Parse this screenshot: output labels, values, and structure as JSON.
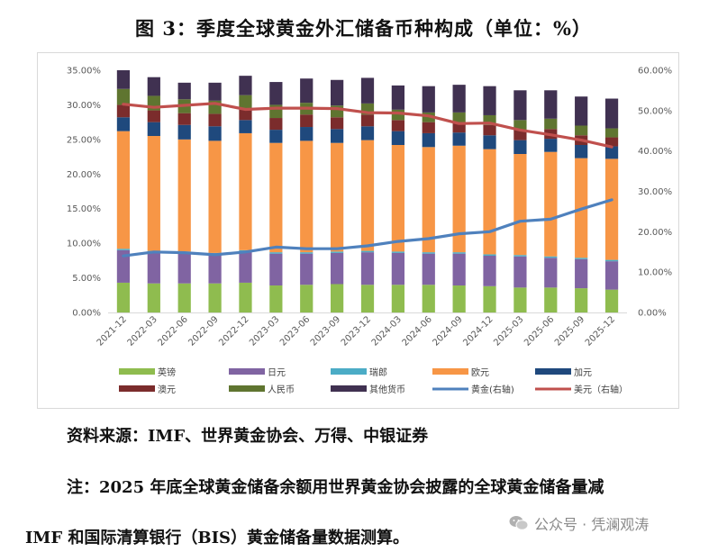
{
  "title": "图 3：季度全球黄金外汇储备币种构成（单位：%）",
  "source": "资料来源：IMF、世界黄金协会、万得、中银证券",
  "note_line1": "注：2025 年底全球黄金储备余额用世界黄金协会披露的全球黄金储备量减",
  "note_line2": "IMF 和国际清算银行（BIS）黄金储备量数据测算。",
  "watermark": "公众号 · 凭澜观涛",
  "chart_data": {
    "type": "bar",
    "stacked": true,
    "categories": [
      "2021-12",
      "2022-03",
      "2022-06",
      "2022-09",
      "2022-12",
      "2023-03",
      "2023-06",
      "2023-09",
      "2023-12",
      "2024-03",
      "2024-06",
      "2024-09",
      "2024-12",
      "2025-03",
      "2025-06",
      "2025-09",
      "2025-12"
    ],
    "left_axis": {
      "ylim": [
        0,
        35
      ],
      "ticks": [
        "0.00%",
        "5.00%",
        "10.00%",
        "15.00%",
        "20.00%",
        "25.00%",
        "30.00%",
        "35.00%"
      ]
    },
    "right_axis": {
      "ylim": [
        0,
        60
      ],
      "ticks": [
        "0.00%",
        "10.00%",
        "20.00%",
        "30.00%",
        "40.00%",
        "50.00%",
        "60.00%"
      ]
    },
    "series": [
      {
        "name": "英镑",
        "axis": "left",
        "kind": "bar",
        "color": "#8fbc4f",
        "values": [
          4.3,
          4.2,
          4.2,
          4.2,
          4.3,
          3.9,
          4.0,
          4.1,
          4.0,
          4.0,
          4.0,
          3.9,
          3.8,
          3.6,
          3.6,
          3.5,
          3.3
        ]
      },
      {
        "name": "日元",
        "axis": "left",
        "kind": "bar",
        "color": "#8064a2",
        "values": [
          4.7,
          4.5,
          4.4,
          4.2,
          4.5,
          4.6,
          4.5,
          4.5,
          4.7,
          4.6,
          4.5,
          4.6,
          4.4,
          4.5,
          4.3,
          4.2,
          4.1
        ]
      },
      {
        "name": "瑞郎",
        "axis": "left",
        "kind": "bar",
        "color": "#4bacc6",
        "values": [
          0.2,
          0.2,
          0.2,
          0.2,
          0.2,
          0.2,
          0.2,
          0.2,
          0.2,
          0.2,
          0.2,
          0.2,
          0.2,
          0.2,
          0.2,
          0.2,
          0.2
        ]
      },
      {
        "name": "欧元",
        "axis": "left",
        "kind": "bar",
        "color": "#f79646",
        "values": [
          17.0,
          16.6,
          16.2,
          16.2,
          16.9,
          15.8,
          16.1,
          15.7,
          16.0,
          15.4,
          15.2,
          15.4,
          15.2,
          14.6,
          15.1,
          14.4,
          14.6
        ]
      },
      {
        "name": "加元",
        "axis": "left",
        "kind": "bar",
        "color": "#1f497d",
        "values": [
          2.0,
          2.0,
          2.1,
          2.1,
          1.9,
          1.9,
          2.0,
          2.0,
          2.0,
          2.0,
          2.0,
          1.9,
          2.0,
          2.0,
          1.9,
          1.9,
          1.8
        ]
      },
      {
        "name": "澳元",
        "axis": "left",
        "kind": "bar",
        "color": "#7b2c2c",
        "values": [
          1.8,
          1.7,
          1.7,
          1.8,
          1.6,
          1.7,
          1.8,
          1.7,
          1.7,
          1.6,
          1.6,
          1.5,
          1.5,
          1.5,
          1.4,
          1.4,
          1.3
        ]
      },
      {
        "name": "人民币",
        "axis": "left",
        "kind": "bar",
        "color": "#5f7530",
        "values": [
          2.3,
          2.1,
          2.0,
          1.9,
          2.0,
          1.9,
          1.7,
          1.7,
          1.6,
          1.5,
          1.4,
          1.4,
          1.4,
          1.4,
          1.5,
          1.4,
          1.3
        ]
      },
      {
        "name": "其他货币",
        "axis": "left",
        "kind": "bar",
        "color": "#403151",
        "values": [
          2.7,
          2.7,
          2.4,
          2.6,
          2.8,
          3.3,
          3.5,
          3.7,
          3.7,
          3.5,
          3.8,
          4.0,
          4.2,
          4.3,
          4.1,
          4.2,
          4.3
        ]
      },
      {
        "name": "黄金(右轴)",
        "axis": "right",
        "kind": "line",
        "color": "#4f81bd",
        "values": [
          14.0,
          15.0,
          14.8,
          14.3,
          15.0,
          16.2,
          15.8,
          15.8,
          16.5,
          17.6,
          18.3,
          19.5,
          20.0,
          22.6,
          23.1,
          25.6,
          27.9
        ]
      },
      {
        "name": "美元（右轴）",
        "axis": "right",
        "kind": "line",
        "color": "#c0504d",
        "values": [
          51.6,
          50.8,
          51.3,
          51.8,
          50.3,
          50.6,
          50.6,
          50.5,
          49.5,
          49.4,
          48.7,
          46.8,
          46.9,
          45.2,
          44.0,
          42.7,
          41.0
        ]
      }
    ],
    "legend_position": "bottom",
    "grid": false
  }
}
